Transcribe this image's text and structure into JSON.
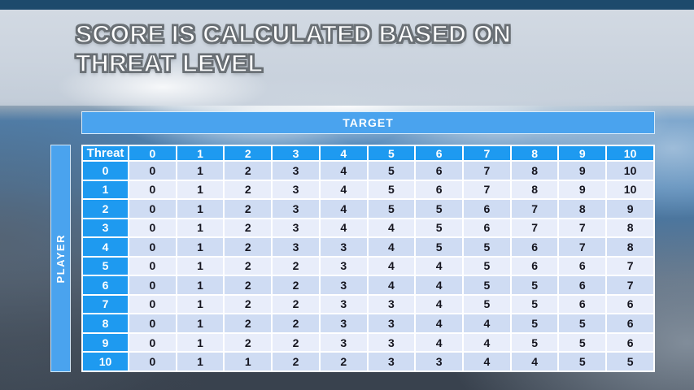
{
  "slide": {
    "title_line1": "SCORE IS CALCULATED BASED ON",
    "title_line2": "THREAT LEVEL"
  },
  "table": {
    "target_label": "TARGET",
    "player_label": "PLAYER",
    "corner_label": "Threat",
    "column_headers": [
      "0",
      "1",
      "2",
      "3",
      "4",
      "5",
      "6",
      "7",
      "8",
      "9",
      "10"
    ],
    "rows": [
      {
        "label": "0",
        "values": [
          0,
          1,
          2,
          3,
          4,
          5,
          6,
          7,
          8,
          9,
          10
        ]
      },
      {
        "label": "1",
        "values": [
          0,
          1,
          2,
          3,
          4,
          5,
          6,
          7,
          8,
          9,
          10
        ]
      },
      {
        "label": "2",
        "values": [
          0,
          1,
          2,
          3,
          4,
          5,
          5,
          6,
          7,
          8,
          9
        ]
      },
      {
        "label": "3",
        "values": [
          0,
          1,
          2,
          3,
          4,
          4,
          5,
          6,
          7,
          7,
          8
        ]
      },
      {
        "label": "4",
        "values": [
          0,
          1,
          2,
          3,
          3,
          4,
          5,
          5,
          6,
          7,
          8
        ]
      },
      {
        "label": "5",
        "values": [
          0,
          1,
          2,
          2,
          3,
          4,
          4,
          5,
          6,
          6,
          7
        ]
      },
      {
        "label": "6",
        "values": [
          0,
          1,
          2,
          2,
          3,
          4,
          4,
          5,
          5,
          6,
          7
        ]
      },
      {
        "label": "7",
        "values": [
          0,
          1,
          2,
          2,
          3,
          3,
          4,
          5,
          5,
          6,
          6
        ]
      },
      {
        "label": "8",
        "values": [
          0,
          1,
          2,
          2,
          3,
          3,
          4,
          4,
          5,
          5,
          6
        ]
      },
      {
        "label": "9",
        "values": [
          0,
          1,
          2,
          2,
          3,
          3,
          4,
          4,
          5,
          5,
          6
        ]
      },
      {
        "label": "10",
        "values": [
          0,
          1,
          1,
          2,
          2,
          3,
          3,
          4,
          4,
          5,
          5
        ]
      }
    ]
  },
  "colors": {
    "header_blue": "#1e9af0",
    "band_blue": "#4aa3ee",
    "row_even_bg": "#cfdcf3",
    "row_odd_bg": "#e8edfa",
    "cell_text": "#15151f",
    "grid_white": "#ffffff",
    "title_text": "#ffffff",
    "title_outline": "#6d7378"
  }
}
